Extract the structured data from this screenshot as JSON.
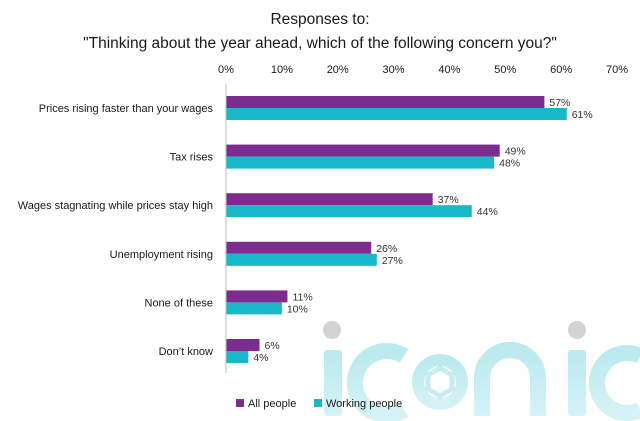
{
  "chart_data": {
    "type": "bar",
    "orientation": "horizontal",
    "title_line1": "Responses to:",
    "title_line2": "\"Thinking about the year ahead, which of the following concern you?\"",
    "categories": [
      "Prices rising faster than your wages",
      "Tax rises",
      "Wages stagnating while prices stay high",
      "Unemployment rising",
      "None of these",
      "Don’t know"
    ],
    "series": [
      {
        "name": "All people",
        "values": [
          57,
          49,
          37,
          26,
          11,
          6
        ],
        "color": "#7b2c8e"
      },
      {
        "name": "Working people",
        "values": [
          61,
          48,
          44,
          27,
          10,
          4
        ],
        "color": "#19b8c8"
      }
    ],
    "xlim": [
      0,
      70
    ],
    "ticks": [
      "0%",
      "10%",
      "20%",
      "30%",
      "40%",
      "50%",
      "60%",
      "70%"
    ],
    "value_suffix": "%",
    "axis_position": "top",
    "legend_placement": "bottom-left",
    "grid": false
  },
  "watermark": {
    "text": "iconic",
    "color": "#19b8c8"
  }
}
